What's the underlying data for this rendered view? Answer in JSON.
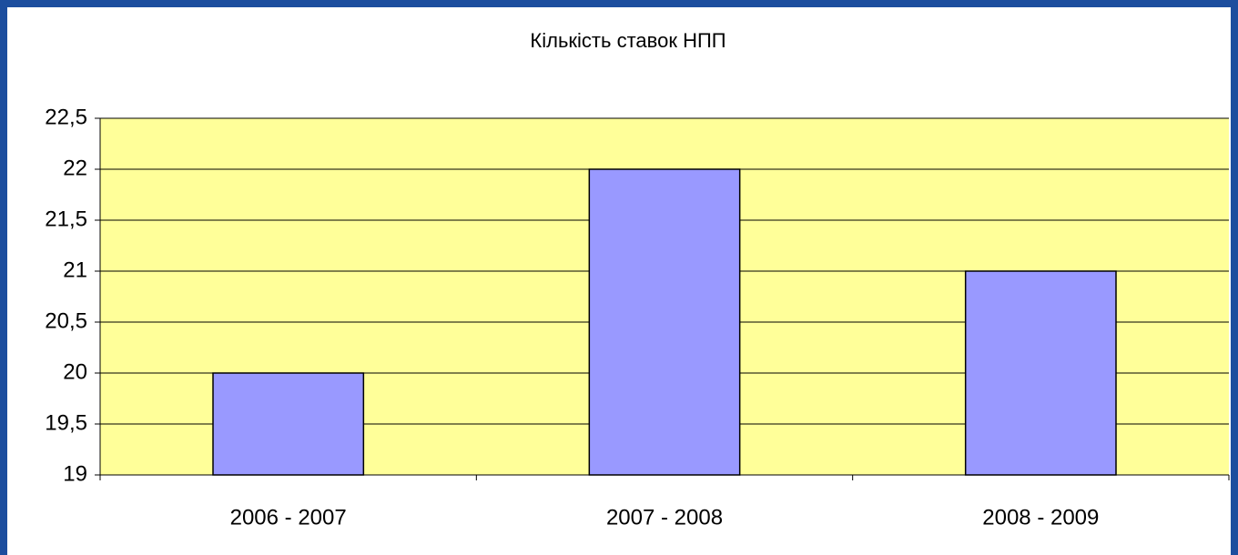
{
  "chart_data": {
    "type": "bar",
    "title": "Кількість ставок НПП",
    "categories": [
      "2006 - 2007",
      "2007 - 2008",
      "2008 - 2009"
    ],
    "values": [
      20,
      22,
      21
    ],
    "color": "#9999ff",
    "ylim": [
      19,
      22.5
    ],
    "yticks": [
      19,
      {
        "value": 19.5,
        "label": "19,5"
      },
      20,
      {
        "value": 20.5,
        "label": "20,5"
      },
      21,
      {
        "value": 21.5,
        "label": "21,5"
      },
      22,
      {
        "value": 22.5,
        "label": "22,5"
      }
    ],
    "grid": true
  }
}
